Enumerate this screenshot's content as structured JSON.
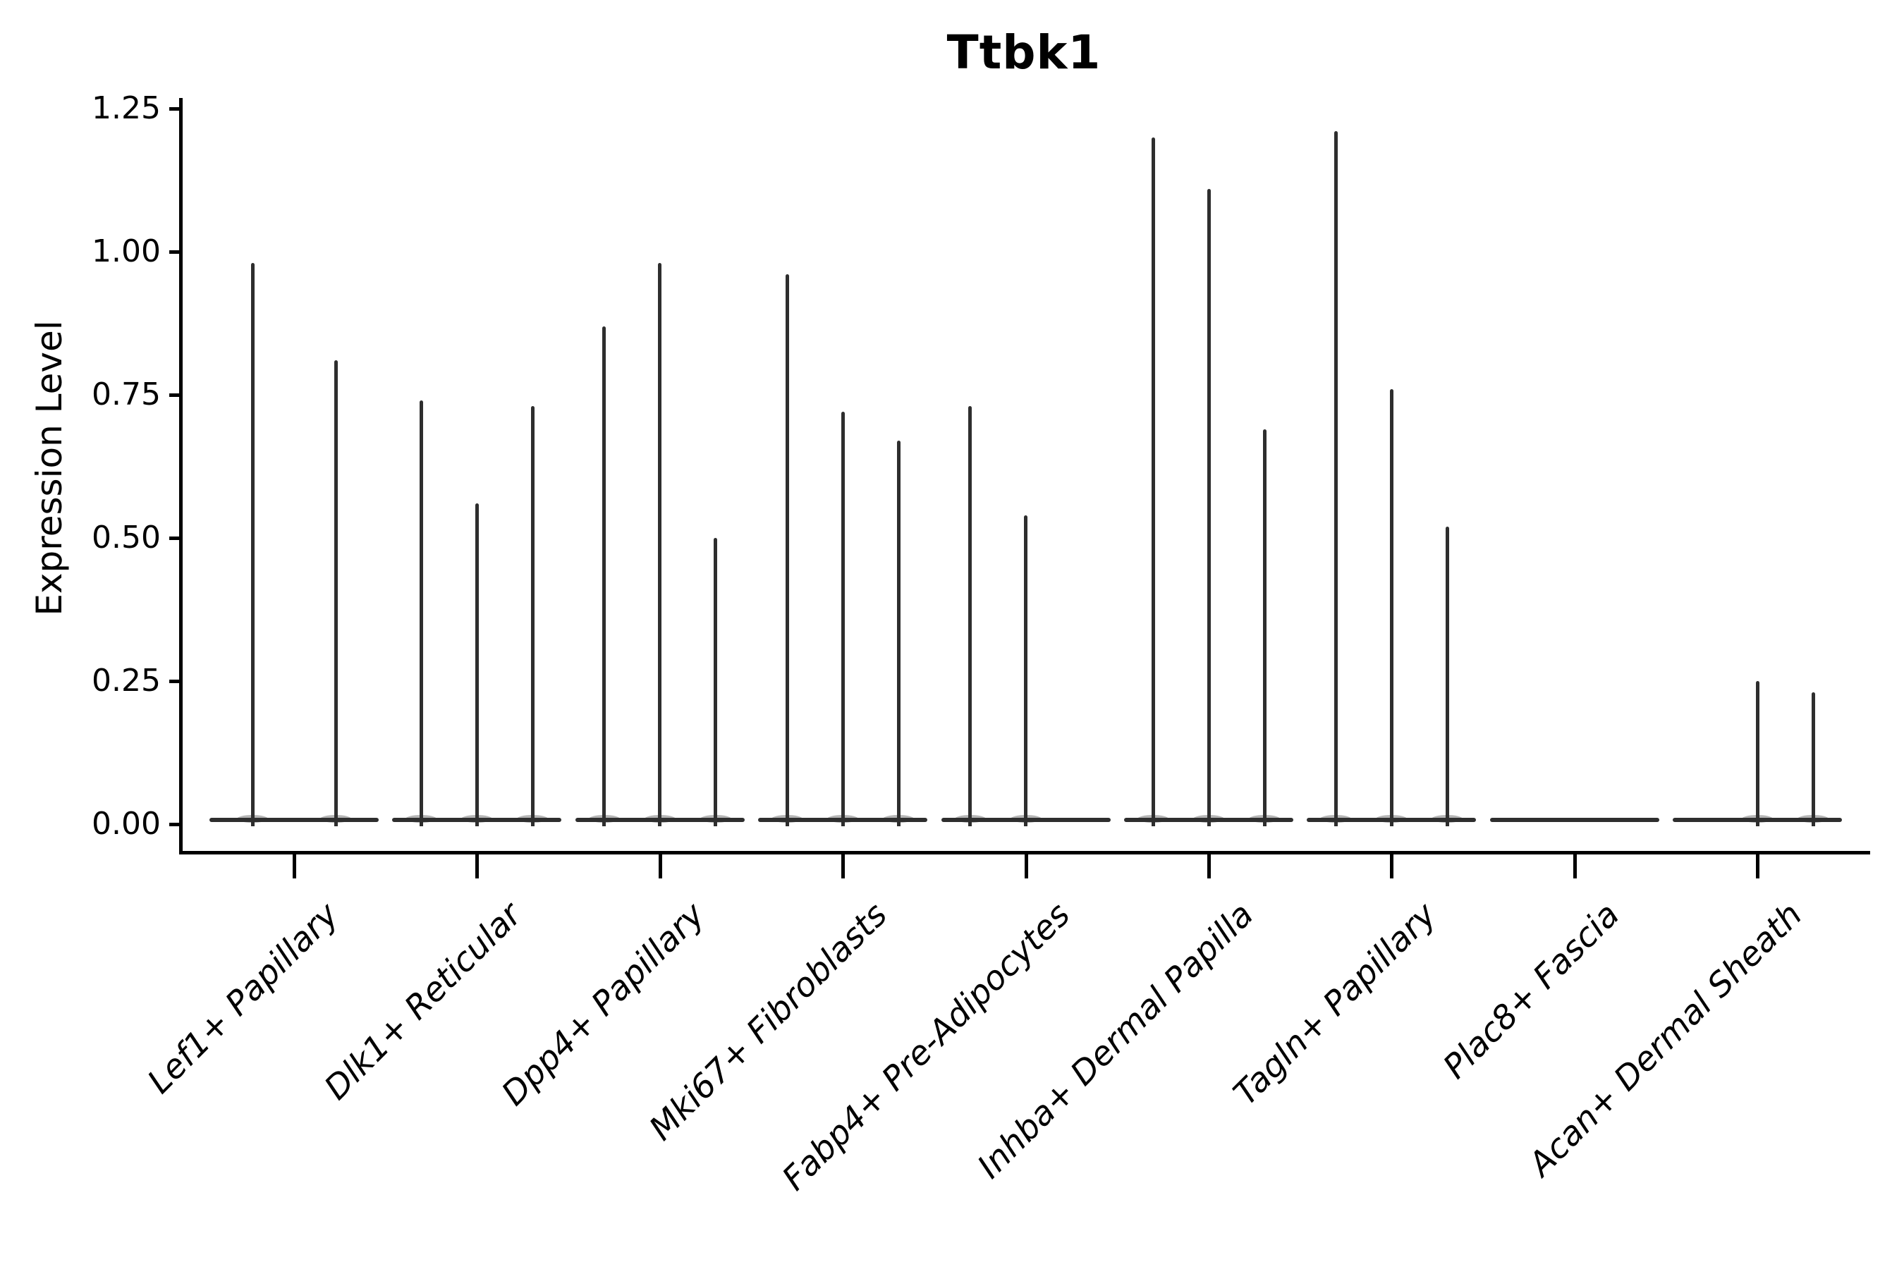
{
  "title": "Ttbk1",
  "y_axis": {
    "label": "Expression Level",
    "tick_labels": [
      "1.25",
      "1.00",
      "0.75",
      "0.50",
      "0.25",
      "0.00"
    ]
  },
  "x_axis": {
    "tick_labels": [
      "Lef1+ Papillary",
      "Dlk1+ Reticular",
      "Dpp4+ Papillary",
      "Mki67+ Fibroblasts",
      "Fabp4+ Pre-Adipocytes",
      "Inhba+ Dermal Papilla",
      "Tagln+ Papillary",
      "Plac8+ Fascia",
      "Acan+ Dermal Sheath"
    ]
  },
  "colors": {
    "violin": "#2e2e2e",
    "axis": "#000000",
    "text": "#000000",
    "background": "#ffffff"
  },
  "chart_data": {
    "type": "violin",
    "title": "Ttbk1",
    "xlabel": "",
    "ylabel": "Expression Level",
    "ylim": [
      0,
      1.25
    ],
    "yticks": [
      1.25,
      1.0,
      0.75,
      0.5,
      0.25,
      0.0
    ],
    "grid": false,
    "legend": false,
    "description": "Thin spike violins rising from a flat baseline at 0; each category shows a flat zero-density line plus 0-3 narrow spikes whose tops mark maximum expression values.",
    "categories": [
      "Lef1+ Papillary",
      "Dlk1+ Reticular",
      "Dpp4+ Papillary",
      "Mki67+ Fibroblasts",
      "Fabp4+ Pre-Adipocytes",
      "Inhba+ Dermal Papilla",
      "Tagln+ Papillary",
      "Plac8+ Fascia",
      "Acan+ Dermal Sheath"
    ],
    "series": [
      {
        "name": "Lef1+ Papillary",
        "spikes": [
          {
            "offset": -59,
            "value": 0.98
          },
          {
            "offset": 59,
            "value": 0.81
          }
        ]
      },
      {
        "name": "Dlk1+ Reticular",
        "spikes": [
          {
            "offset": -79,
            "value": 0.74
          },
          {
            "offset": 0,
            "value": 0.56
          },
          {
            "offset": 79,
            "value": 0.73
          }
        ]
      },
      {
        "name": "Dpp4+ Papillary",
        "spikes": [
          {
            "offset": -79,
            "value": 0.87
          },
          {
            "offset": 0,
            "value": 0.98
          },
          {
            "offset": 79,
            "value": 0.5
          }
        ]
      },
      {
        "name": "Mki67+ Fibroblasts",
        "spikes": [
          {
            "offset": -79,
            "value": 0.96
          },
          {
            "offset": 0,
            "value": 0.72
          },
          {
            "offset": 79,
            "value": 0.67
          }
        ]
      },
      {
        "name": "Fabp4+ Pre-Adipocytes",
        "spikes": [
          {
            "offset": -79,
            "value": 0.73
          },
          {
            "offset": 0,
            "value": 0.54
          }
        ]
      },
      {
        "name": "Inhba+ Dermal Papilla",
        "spikes": [
          {
            "offset": -79,
            "value": 1.2
          },
          {
            "offset": 0,
            "value": 1.11
          },
          {
            "offset": 79,
            "value": 0.69
          }
        ]
      },
      {
        "name": "Tagln+ Papillary",
        "spikes": [
          {
            "offset": -79,
            "value": 1.21
          },
          {
            "offset": 0,
            "value": 0.76
          },
          {
            "offset": 79,
            "value": 0.52
          }
        ]
      },
      {
        "name": "Plac8+ Fascia",
        "spikes": []
      },
      {
        "name": "Acan+ Dermal Sheath",
        "spikes": [
          {
            "offset": 0,
            "value": 0.25
          },
          {
            "offset": 79,
            "value": 0.23
          }
        ]
      }
    ],
    "baseline_value": 0
  }
}
